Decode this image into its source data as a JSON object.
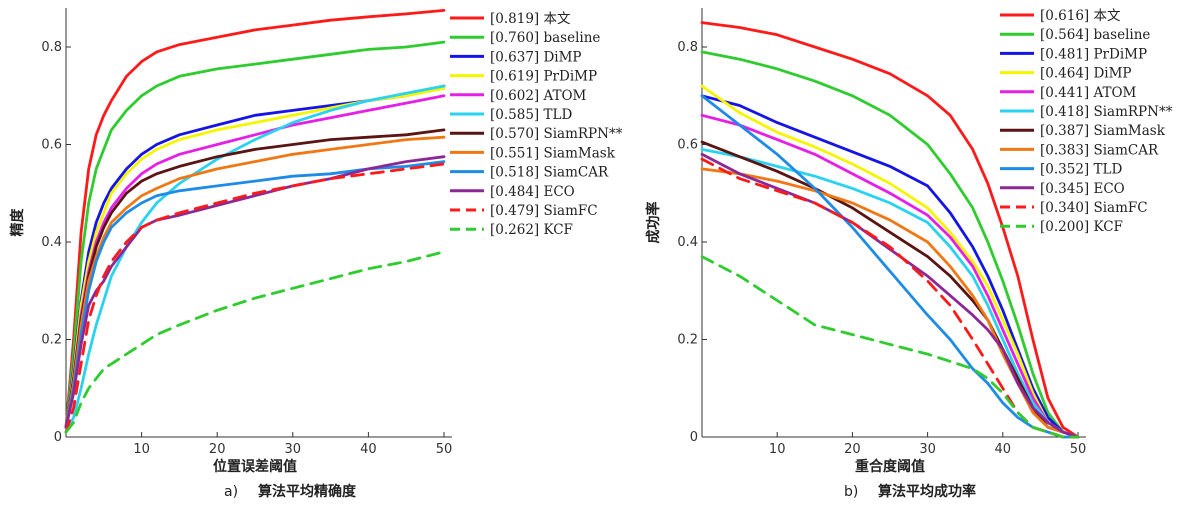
{
  "chart_data": [
    {
      "type": "line",
      "panel_label": "a)",
      "caption": "算法平均精确度",
      "xlabel": "位置误差阈值",
      "ylabel": "精度",
      "xlim": [
        0,
        50
      ],
      "ylim": [
        0,
        0.88
      ],
      "xticks": [
        "10",
        "20",
        "30",
        "40",
        "50"
      ],
      "yticks": [
        "0",
        "0.2",
        "0.4",
        "0.6",
        "0.8"
      ],
      "legend_position": "top-right",
      "x": [
        0,
        1,
        2,
        3,
        4,
        5,
        6,
        8,
        10,
        12,
        15,
        20,
        25,
        30,
        35,
        40,
        45,
        50
      ],
      "series": [
        {
          "name": "[0.819] 本文",
          "color": "#ff1a1a",
          "dash": false,
          "values": [
            0.02,
            0.2,
            0.42,
            0.55,
            0.62,
            0.66,
            0.69,
            0.74,
            0.77,
            0.79,
            0.805,
            0.82,
            0.835,
            0.845,
            0.855,
            0.862,
            0.868,
            0.875
          ]
        },
        {
          "name": "[0.760] baseline",
          "color": "#2ecc2e",
          "dash": false,
          "values": [
            0.02,
            0.17,
            0.36,
            0.48,
            0.55,
            0.59,
            0.63,
            0.67,
            0.7,
            0.72,
            0.74,
            0.755,
            0.765,
            0.775,
            0.785,
            0.795,
            0.8,
            0.81
          ]
        },
        {
          "name": "[0.637] DiMP",
          "color": "#1414e6",
          "dash": false,
          "values": [
            0.02,
            0.14,
            0.28,
            0.38,
            0.44,
            0.48,
            0.51,
            0.55,
            0.58,
            0.6,
            0.62,
            0.64,
            0.66,
            0.67,
            0.68,
            0.69,
            0.7,
            0.72
          ]
        },
        {
          "name": "[0.619] PrDiMP",
          "color": "#f5f500",
          "dash": false,
          "values": [
            0.02,
            0.13,
            0.27,
            0.36,
            0.42,
            0.46,
            0.5,
            0.54,
            0.57,
            0.59,
            0.61,
            0.63,
            0.645,
            0.66,
            0.675,
            0.69,
            0.7,
            0.715
          ]
        },
        {
          "name": "[0.602] ATOM",
          "color": "#e61ee6",
          "dash": false,
          "values": [
            0.02,
            0.12,
            0.25,
            0.34,
            0.4,
            0.44,
            0.47,
            0.51,
            0.54,
            0.56,
            0.58,
            0.6,
            0.62,
            0.64,
            0.655,
            0.67,
            0.685,
            0.7
          ]
        },
        {
          "name": "[0.585] TLD",
          "color": "#28d2f0",
          "dash": false,
          "values": [
            0.01,
            0.04,
            0.1,
            0.17,
            0.23,
            0.28,
            0.33,
            0.39,
            0.44,
            0.48,
            0.52,
            0.57,
            0.61,
            0.645,
            0.67,
            0.69,
            0.705,
            0.72
          ]
        },
        {
          "name": "[0.570] SiamRPN**",
          "color": "#5a1414",
          "dash": false,
          "values": [
            0.02,
            0.12,
            0.24,
            0.33,
            0.39,
            0.43,
            0.46,
            0.5,
            0.525,
            0.54,
            0.555,
            0.575,
            0.59,
            0.6,
            0.61,
            0.615,
            0.62,
            0.63
          ]
        },
        {
          "name": "[0.551] SiamMask",
          "color": "#f07814",
          "dash": false,
          "values": [
            0.02,
            0.11,
            0.23,
            0.32,
            0.37,
            0.41,
            0.44,
            0.47,
            0.495,
            0.51,
            0.53,
            0.55,
            0.565,
            0.58,
            0.59,
            0.6,
            0.61,
            0.615
          ]
        },
        {
          "name": "[0.518] SiamCAR",
          "color": "#1e8ce6",
          "dash": false,
          "values": [
            0.02,
            0.1,
            0.21,
            0.3,
            0.36,
            0.4,
            0.43,
            0.46,
            0.48,
            0.495,
            0.505,
            0.515,
            0.525,
            0.535,
            0.54,
            0.55,
            0.555,
            0.565
          ]
        },
        {
          "name": "[0.484] ECO",
          "color": "#8c2896",
          "dash": false,
          "values": [
            0.02,
            0.09,
            0.19,
            0.27,
            0.3,
            0.32,
            0.35,
            0.39,
            0.43,
            0.445,
            0.455,
            0.475,
            0.495,
            0.515,
            0.53,
            0.55,
            0.565,
            0.575
          ]
        },
        {
          "name": "[0.479] SiamFC",
          "color": "#ff1a1a",
          "dash": true,
          "values": [
            0.01,
            0.06,
            0.15,
            0.24,
            0.29,
            0.33,
            0.36,
            0.4,
            0.43,
            0.445,
            0.46,
            0.48,
            0.5,
            0.515,
            0.53,
            0.54,
            0.55,
            0.56
          ]
        },
        {
          "name": "[0.262] KCF",
          "color": "#2ecc2e",
          "dash": true,
          "values": [
            0.01,
            0.03,
            0.07,
            0.1,
            0.12,
            0.14,
            0.15,
            0.17,
            0.19,
            0.21,
            0.23,
            0.26,
            0.285,
            0.305,
            0.325,
            0.345,
            0.36,
            0.38
          ]
        }
      ]
    },
    {
      "type": "line",
      "panel_label": "b)",
      "caption": "算法平均成功率",
      "xlabel": "重合度阈值",
      "ylabel": "成功率",
      "xlim": [
        0,
        50
      ],
      "ylim": [
        0,
        0.88
      ],
      "xticks": [
        "10",
        "20",
        "30",
        "40",
        "50"
      ],
      "yticks": [
        "0",
        "0.2",
        "0.4",
        "0.6",
        "0.8"
      ],
      "legend_position": "top-right",
      "x": [
        0,
        5,
        10,
        15,
        20,
        25,
        30,
        33,
        36,
        38,
        40,
        42,
        44,
        46,
        48,
        50
      ],
      "series": [
        {
          "name": "[0.616] 本文",
          "color": "#ff1a1a",
          "dash": false,
          "values": [
            0.85,
            0.84,
            0.825,
            0.8,
            0.775,
            0.745,
            0.7,
            0.66,
            0.59,
            0.52,
            0.43,
            0.33,
            0.2,
            0.08,
            0.02,
            0.0
          ]
        },
        {
          "name": "[0.564] baseline",
          "color": "#2ecc2e",
          "dash": false,
          "values": [
            0.79,
            0.775,
            0.755,
            0.73,
            0.7,
            0.66,
            0.6,
            0.54,
            0.47,
            0.4,
            0.32,
            0.23,
            0.13,
            0.05,
            0.01,
            0.0
          ]
        },
        {
          "name": "[0.481] PrDiMP",
          "color": "#1414e6",
          "dash": false,
          "values": [
            0.7,
            0.68,
            0.645,
            0.615,
            0.585,
            0.555,
            0.515,
            0.46,
            0.39,
            0.33,
            0.26,
            0.18,
            0.1,
            0.04,
            0.01,
            0.0
          ]
        },
        {
          "name": "[0.464] DiMP",
          "color": "#f5f500",
          "dash": false,
          "values": [
            0.72,
            0.665,
            0.625,
            0.595,
            0.56,
            0.52,
            0.47,
            0.42,
            0.36,
            0.31,
            0.24,
            0.17,
            0.09,
            0.03,
            0.01,
            0.0
          ]
        },
        {
          "name": "[0.441] ATOM",
          "color": "#e61ee6",
          "dash": false,
          "values": [
            0.66,
            0.64,
            0.61,
            0.58,
            0.54,
            0.5,
            0.455,
            0.41,
            0.35,
            0.29,
            0.22,
            0.15,
            0.08,
            0.03,
            0.01,
            0.0
          ]
        },
        {
          "name": "[0.418] SiamRPN**",
          "color": "#28d2f0",
          "dash": false,
          "values": [
            0.59,
            0.575,
            0.555,
            0.535,
            0.51,
            0.48,
            0.44,
            0.39,
            0.33,
            0.27,
            0.2,
            0.13,
            0.07,
            0.03,
            0.01,
            0.0
          ]
        },
        {
          "name": "[0.387] SiamMask",
          "color": "#5a1414",
          "dash": false,
          "values": [
            0.605,
            0.575,
            0.545,
            0.51,
            0.47,
            0.42,
            0.37,
            0.33,
            0.28,
            0.24,
            0.18,
            0.12,
            0.06,
            0.02,
            0.01,
            0.0
          ]
        },
        {
          "name": "[0.383] SiamCAR",
          "color": "#f07814",
          "dash": false,
          "values": [
            0.55,
            0.54,
            0.525,
            0.505,
            0.48,
            0.445,
            0.4,
            0.35,
            0.29,
            0.24,
            0.17,
            0.11,
            0.05,
            0.02,
            0.01,
            0.0
          ]
        },
        {
          "name": "[0.352] TLD",
          "color": "#1e8ce6",
          "dash": false,
          "values": [
            0.7,
            0.64,
            0.58,
            0.51,
            0.43,
            0.34,
            0.25,
            0.2,
            0.14,
            0.11,
            0.07,
            0.04,
            0.02,
            0.01,
            0.0,
            0.0
          ]
        },
        {
          "name": "[0.345] ECO",
          "color": "#8c2896",
          "dash": false,
          "values": [
            0.58,
            0.54,
            0.51,
            0.48,
            0.44,
            0.385,
            0.33,
            0.29,
            0.25,
            0.22,
            0.18,
            0.11,
            0.06,
            0.03,
            0.01,
            0.0
          ]
        },
        {
          "name": "[0.340] SiamFC",
          "color": "#ff1a1a",
          "dash": true,
          "values": [
            0.57,
            0.53,
            0.505,
            0.48,
            0.44,
            0.39,
            0.32,
            0.27,
            0.2,
            0.15,
            0.1,
            0.05,
            0.02,
            0.01,
            0.0,
            0.0
          ]
        },
        {
          "name": "[0.200] KCF",
          "color": "#2ecc2e",
          "dash": true,
          "values": [
            0.37,
            0.33,
            0.28,
            0.23,
            0.21,
            0.19,
            0.17,
            0.155,
            0.14,
            0.12,
            0.09,
            0.05,
            0.02,
            0.01,
            0.0,
            0.0
          ]
        }
      ]
    }
  ]
}
